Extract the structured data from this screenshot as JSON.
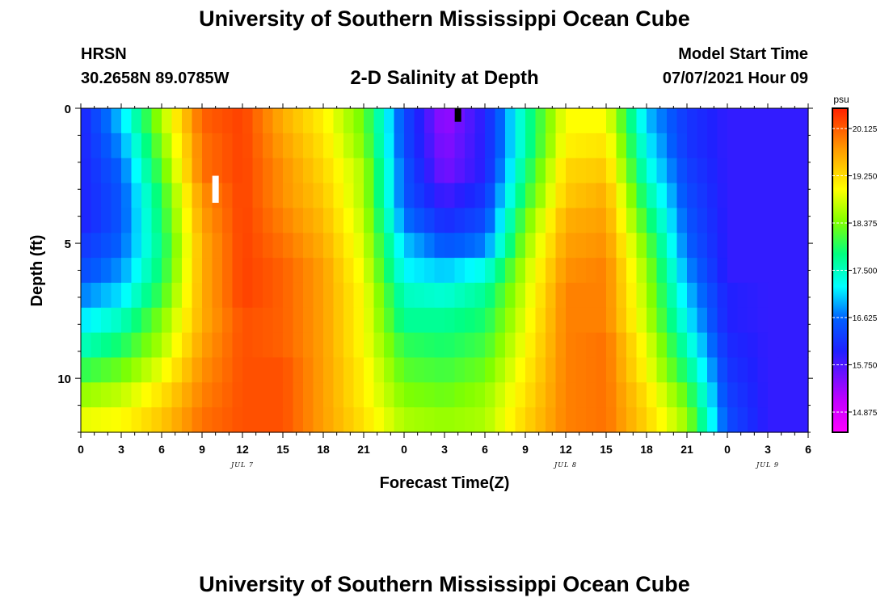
{
  "header": {
    "title": "University of Southern Mississippi Ocean Cube",
    "station": "HRSN",
    "coords": "30.2658N  89.0785W",
    "subtitle": "2-D Salinity at Depth",
    "model_label": "Model Start Time",
    "model_time": "07/07/2021 Hour 09"
  },
  "footer": {
    "title": "University of Southern Mississippi Ocean Cube"
  },
  "chart_data": {
    "type": "heatmap",
    "title": "2-D Salinity at Depth",
    "xlabel": "Forecast Time(Z)",
    "ylabel": "Depth (ft)",
    "x_range_hours": [
      0,
      54
    ],
    "y_range_ft": [
      0,
      12
    ],
    "y_reversed": true,
    "x_ticks": [
      "0",
      "3",
      "6",
      "9",
      "12",
      "15",
      "18",
      "21",
      "0",
      "3",
      "6",
      "9",
      "12",
      "15",
      "18",
      "21",
      "0",
      "3",
      "6"
    ],
    "y_ticks": [
      0,
      5,
      10
    ],
    "day_labels": [
      {
        "label": "JUL 7",
        "hour": 12
      },
      {
        "label": "JUL 8",
        "hour": 36
      },
      {
        "label": "JUL 9",
        "hour": 51
      }
    ],
    "colorbar": {
      "unit": "psu",
      "min": 14.5,
      "max": 20.5,
      "tick_values": [
        14.875,
        15.75,
        16.625,
        17.5,
        18.375,
        19.25,
        20.125
      ],
      "tick_labels": [
        "14.875",
        "15.750",
        "16.625",
        "17.500",
        "18.375",
        "19.250",
        "20.125"
      ]
    },
    "depth_rows_ft": [
      0,
      1,
      2,
      3,
      4,
      5,
      6,
      7,
      8,
      9,
      10,
      11,
      12
    ],
    "salinity_time_hours": [
      0,
      3,
      6,
      9,
      12,
      15,
      18,
      21,
      24,
      27,
      30,
      33,
      36,
      39,
      42,
      45,
      48,
      51,
      54
    ],
    "salinity_psu": [
      [
        16.0,
        17.0,
        18.6,
        20.1,
        20.3,
        19.6,
        19.1,
        18.3,
        16.4,
        15.3,
        16.0,
        17.6,
        19.0,
        19.0,
        17.0,
        16.2,
        15.9,
        15.9,
        15.9
      ],
      [
        16.0,
        16.8,
        18.4,
        20.0,
        20.3,
        19.7,
        19.2,
        18.4,
        16.4,
        15.4,
        16.0,
        17.6,
        19.1,
        19.2,
        17.2,
        16.2,
        15.9,
        15.9,
        15.9
      ],
      [
        16.0,
        16.6,
        18.2,
        20.0,
        20.3,
        19.8,
        19.3,
        18.6,
        16.5,
        15.5,
        16.0,
        17.8,
        19.3,
        19.4,
        17.4,
        16.3,
        15.9,
        15.9,
        15.9
      ],
      [
        16.0,
        16.5,
        18.0,
        19.8,
        20.3,
        19.8,
        19.4,
        18.6,
        16.5,
        15.8,
        16.2,
        18.0,
        19.4,
        19.6,
        17.7,
        16.4,
        15.9,
        15.9,
        15.9
      ],
      [
        16.0,
        16.5,
        17.9,
        19.7,
        20.3,
        19.9,
        19.5,
        18.7,
        16.7,
        16.1,
        16.4,
        18.3,
        19.6,
        19.7,
        18.0,
        16.5,
        15.9,
        15.9,
        15.9
      ],
      [
        16.2,
        16.6,
        17.8,
        19.6,
        20.3,
        20.0,
        19.6,
        18.8,
        17.0,
        16.5,
        16.7,
        18.5,
        19.7,
        19.8,
        18.3,
        16.6,
        15.9,
        15.9,
        15.9
      ],
      [
        16.4,
        16.8,
        17.9,
        19.6,
        20.3,
        20.1,
        19.7,
        18.9,
        17.2,
        17.0,
        17.3,
        18.7,
        19.8,
        19.9,
        18.5,
        16.8,
        15.9,
        15.9,
        15.9
      ],
      [
        16.7,
        17.1,
        18.1,
        19.6,
        20.3,
        20.1,
        19.7,
        19.0,
        17.5,
        17.4,
        17.7,
        18.8,
        19.9,
        19.9,
        18.6,
        17.0,
        16.0,
        15.9,
        15.9
      ],
      [
        17.1,
        17.5,
        18.4,
        19.6,
        20.2,
        20.1,
        19.7,
        19.0,
        17.7,
        17.7,
        17.9,
        18.9,
        19.9,
        19.9,
        18.7,
        17.2,
        16.0,
        15.9,
        15.9
      ],
      [
        17.5,
        17.9,
        18.6,
        19.7,
        20.2,
        20.1,
        19.7,
        19.0,
        18.0,
        17.9,
        18.1,
        19.0,
        19.9,
        20.0,
        18.9,
        17.5,
        16.1,
        15.9,
        15.9
      ],
      [
        18.0,
        18.3,
        18.9,
        19.8,
        20.2,
        20.2,
        19.7,
        19.1,
        18.2,
        18.1,
        18.3,
        19.1,
        19.9,
        20.0,
        19.0,
        17.8,
        16.2,
        15.9,
        15.9
      ],
      [
        18.5,
        18.7,
        19.2,
        19.9,
        20.2,
        20.2,
        19.7,
        19.1,
        18.4,
        18.3,
        18.5,
        19.2,
        19.9,
        20.0,
        19.2,
        18.2,
        16.3,
        15.9,
        15.9
      ],
      [
        18.9,
        19.0,
        19.4,
        20.0,
        20.2,
        20.2,
        19.7,
        19.2,
        18.6,
        18.5,
        18.6,
        19.3,
        19.9,
        20.0,
        19.3,
        18.5,
        16.4,
        15.9,
        15.9
      ]
    ],
    "markers": [
      {
        "hour": 10.0,
        "depth_top_ft": 2.5,
        "depth_bottom_ft": 3.5,
        "color": "#ffffff"
      },
      {
        "hour": 28.0,
        "depth_top_ft": 0.0,
        "depth_bottom_ft": 0.5,
        "color": "#000000"
      }
    ]
  }
}
